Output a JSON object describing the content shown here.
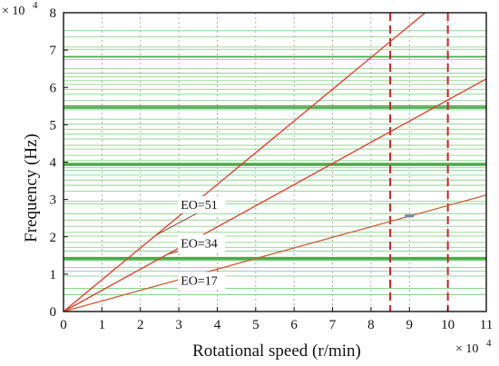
{
  "chart_data": {
    "type": "line",
    "title": "",
    "xlabel": "Rotational speed (r/min)",
    "ylabel": "Frequency (Hz)",
    "x_multiplier": "× 10",
    "x_multiplier_exp": "4",
    "y_multiplier": "× 10",
    "y_multiplier_exp": "4",
    "xlim": [
      0,
      11
    ],
    "ylim": [
      0,
      8
    ],
    "x_ticks": [
      "0",
      "1",
      "2",
      "3",
      "4",
      "5",
      "6",
      "7",
      "8",
      "9",
      "10",
      "11"
    ],
    "y_ticks": [
      "0",
      "1",
      "2",
      "3",
      "4",
      "5",
      "6",
      "7",
      "8"
    ],
    "grid": "vertical dotted",
    "series": [
      {
        "name": "EO=51",
        "x": [
          0,
          9.41
        ],
        "y": [
          0,
          8.0
        ],
        "color": "#e23a2a"
      },
      {
        "name": "EO=34",
        "x": [
          0,
          11
        ],
        "y": [
          0,
          6.23
        ],
        "color": "#e23a2a"
      },
      {
        "name": "EO=17",
        "x": [
          0,
          11
        ],
        "y": [
          0,
          3.12
        ],
        "color": "#c8603a"
      }
    ],
    "natural_frequencies": [
      0.45,
      0.62,
      0.95,
      1.08,
      1.18,
      1.36,
      1.4,
      1.44,
      1.62,
      1.72,
      1.85,
      2.02,
      2.12,
      2.28,
      2.45,
      2.62,
      2.88,
      2.95,
      3.22,
      3.38,
      3.52,
      3.65,
      3.78,
      3.85,
      3.92,
      3.96,
      4.04,
      4.18,
      4.35,
      4.45,
      4.62,
      4.75,
      4.88,
      5.02,
      5.15,
      5.4,
      5.45,
      5.5,
      5.65,
      5.82,
      5.95,
      6.08,
      6.18,
      6.28,
      6.38,
      6.5,
      6.75,
      6.82,
      7.02,
      7.08,
      7.35,
      7.52
    ],
    "natural_frequencies_bold": [
      1.4,
      1.44,
      3.92,
      3.96,
      5.45,
      5.5,
      6.82
    ],
    "reference_lines_x": [
      8.5,
      10.0
    ],
    "annotations": [
      {
        "text": "EO=51",
        "x": 3.05,
        "y": 2.75,
        "pointer_to_x": 2.4
      },
      {
        "text": "EO=34",
        "x": 3.05,
        "y": 1.72,
        "pointer_to_x": 2.7
      },
      {
        "text": "EO=17",
        "x": 3.05,
        "y": 0.72,
        "pointer_to_x": 4.0
      }
    ],
    "crossing_marker": {
      "x": 9.0,
      "y": 2.56
    }
  }
}
